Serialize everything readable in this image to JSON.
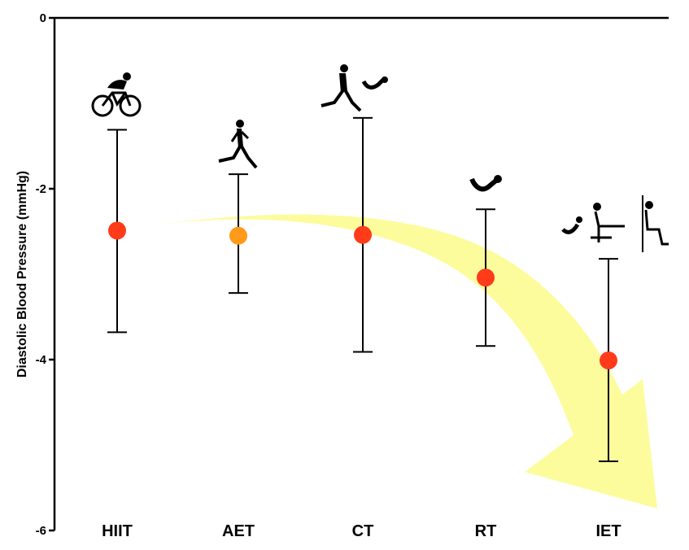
{
  "chart_data": {
    "type": "scatter",
    "title": "",
    "xlabel": "",
    "ylabel": "Diastolic Blood Pressure (mmHg)",
    "ylim": [
      -6,
      0
    ],
    "yticks": [
      {
        "value": 0,
        "label": "0"
      },
      {
        "value": -2,
        "label": "-2"
      },
      {
        "value": -4,
        "label": "-4"
      },
      {
        "value": -6,
        "label": "-6"
      }
    ],
    "categories": [
      "HIIT",
      "AET",
      "CT",
      "RT",
      "IET"
    ],
    "series": [
      {
        "values": [
          -2.49,
          -2.55,
          -2.54,
          -3.04,
          -4.01
        ],
        "ci_upper": [
          -1.31,
          -1.83,
          -1.17,
          -2.24,
          -2.82
        ],
        "ci_lower": [
          -3.68,
          -3.22,
          -3.91,
          -3.84,
          -5.19
        ]
      }
    ],
    "grid": false,
    "legend": "none",
    "colors": {
      "marker": "#ff3b1a",
      "marker_highlight": "#ff9a1a",
      "trend_arrow": "#fbfb8c",
      "axis": "#000000"
    },
    "icons": [
      "cyclist-icon",
      "runner-icon",
      "runner-and-weights-icon",
      "dumbbell-curl-icon",
      "isometric-exercises-icon"
    ]
  }
}
